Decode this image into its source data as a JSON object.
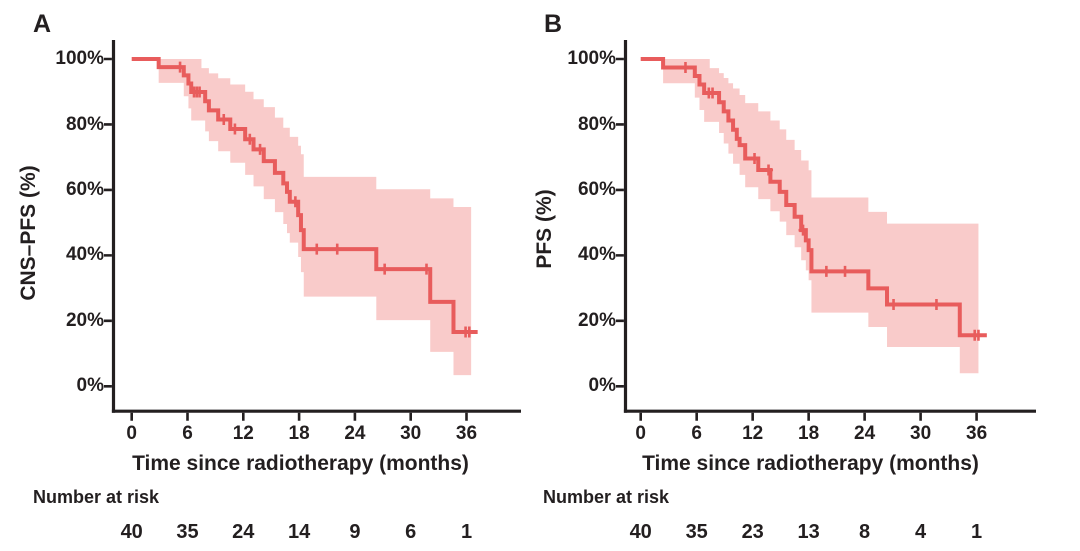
{
  "colors": {
    "curve": "#e85c5c",
    "band": "#f9cbca",
    "axis": "#231f20",
    "text": "#231f20",
    "background": "#ffffff"
  },
  "x_axis": {
    "label": "Time since radiotherapy (months)",
    "ticks": [
      "0",
      "6",
      "12",
      "18",
      "24",
      "30",
      "36"
    ]
  },
  "y_axis": {
    "ticks": [
      "100%",
      "80%",
      "60%",
      "40%",
      "20%",
      "0%"
    ]
  },
  "risk_table_title": "Number at risk",
  "chart_data": [
    {
      "type": "line",
      "panel_label": "A",
      "ylabel": "CNS–PFS (%)",
      "xlabel": "Time since radiotherapy (months)",
      "xlim": [
        0,
        40
      ],
      "ylim": [
        0,
        100
      ],
      "x_tick_values": [
        0,
        6,
        12,
        18,
        24,
        30,
        36
      ],
      "y_tick_values": [
        100,
        80,
        60,
        40,
        20,
        0
      ],
      "number_at_risk": [
        40,
        35,
        24,
        14,
        9,
        6,
        1
      ],
      "km_steps": [
        [
          0,
          100
        ],
        [
          2.9,
          97.5
        ],
        [
          5.6,
          95.0
        ],
        [
          6.1,
          92.5
        ],
        [
          6.4,
          89.9
        ],
        [
          7.9,
          87.1
        ],
        [
          8.3,
          84.3
        ],
        [
          9.3,
          81.5
        ],
        [
          10.6,
          78.6
        ],
        [
          12.2,
          75.5
        ],
        [
          13.1,
          72.4
        ],
        [
          14.2,
          68.8
        ],
        [
          15.4,
          65.2
        ],
        [
          16.3,
          62.0
        ],
        [
          16.7,
          59.4
        ],
        [
          17.0,
          56.4
        ],
        [
          17.9,
          52.3
        ],
        [
          18.2,
          47.7
        ],
        [
          18.5,
          41.9
        ],
        [
          26.3,
          35.8
        ],
        [
          32.1,
          25.8
        ],
        [
          34.6,
          16.6
        ]
      ],
      "end_t": 37.2,
      "censor_marks": [
        [
          5.2,
          97.5
        ],
        [
          6.7,
          89.9
        ],
        [
          7.0,
          89.9
        ],
        [
          7.3,
          89.9
        ],
        [
          9.9,
          81.5
        ],
        [
          11.1,
          78.6
        ],
        [
          12.7,
          75.5
        ],
        [
          13.8,
          72.4
        ],
        [
          17.6,
          56.4
        ],
        [
          19.9,
          41.9
        ],
        [
          22.1,
          41.9
        ],
        [
          27.2,
          35.8
        ],
        [
          31.7,
          35.8
        ],
        [
          35.9,
          16.6
        ],
        [
          36.3,
          16.6
        ]
      ],
      "ci_upper": [
        [
          0,
          100
        ],
        [
          7.5,
          97.2
        ],
        [
          8.3,
          95.6
        ],
        [
          9.3,
          94.1
        ],
        [
          10.6,
          92.2
        ],
        [
          12.2,
          90.0
        ],
        [
          13.1,
          87.7
        ],
        [
          14.2,
          85.3
        ],
        [
          15.4,
          82.1
        ],
        [
          16.3,
          79.0
        ],
        [
          17.0,
          76.2
        ],
        [
          17.9,
          73.5
        ],
        [
          18.2,
          70.9
        ],
        [
          18.5,
          64.0
        ],
        [
          26.3,
          60.2
        ],
        [
          32.1,
          57.4
        ],
        [
          34.6,
          54.8
        ]
      ],
      "ci_lower": [
        [
          0,
          100
        ],
        [
          2.9,
          92.7
        ],
        [
          5.6,
          88.6
        ],
        [
          6.1,
          84.9
        ],
        [
          6.4,
          81.2
        ],
        [
          7.9,
          77.9
        ],
        [
          8.3,
          74.9
        ],
        [
          9.3,
          71.8
        ],
        [
          10.6,
          68.3
        ],
        [
          12.2,
          64.6
        ],
        [
          13.1,
          61.1
        ],
        [
          14.2,
          57.2
        ],
        [
          15.4,
          53.2
        ],
        [
          16.3,
          49.6
        ],
        [
          16.7,
          46.8
        ],
        [
          17.0,
          43.9
        ],
        [
          17.9,
          39.5
        ],
        [
          18.2,
          34.9
        ],
        [
          18.5,
          27.4
        ],
        [
          26.3,
          20.2
        ],
        [
          32.1,
          10.5
        ],
        [
          34.6,
          3.4
        ]
      ],
      "ci_end_t": 36.5
    },
    {
      "type": "line",
      "panel_label": "B",
      "ylabel": "PFS (%)",
      "xlabel": "Time since radiotherapy (months)",
      "xlim": [
        0,
        40
      ],
      "ylim": [
        0,
        100
      ],
      "x_tick_values": [
        0,
        6,
        12,
        18,
        24,
        30,
        36
      ],
      "y_tick_values": [
        100,
        80,
        60,
        40,
        20,
        0
      ],
      "number_at_risk": [
        40,
        35,
        23,
        13,
        8,
        4,
        1
      ],
      "km_steps": [
        [
          0,
          100
        ],
        [
          2.4,
          97.4
        ],
        [
          5.8,
          94.8
        ],
        [
          6.3,
          92.2
        ],
        [
          6.8,
          89.6
        ],
        [
          8.4,
          86.8
        ],
        [
          8.9,
          84.0
        ],
        [
          9.4,
          81.2
        ],
        [
          9.9,
          78.4
        ],
        [
          10.3,
          75.6
        ],
        [
          10.6,
          73.7
        ],
        [
          11.2,
          69.6
        ],
        [
          12.6,
          66.1
        ],
        [
          13.9,
          62.5
        ],
        [
          14.9,
          59.4
        ],
        [
          15.6,
          55.4
        ],
        [
          16.5,
          51.8
        ],
        [
          17.2,
          47.7
        ],
        [
          17.7,
          44.6
        ],
        [
          18.0,
          41.6
        ],
        [
          18.3,
          35.1
        ],
        [
          24.4,
          29.9
        ],
        [
          26.4,
          25.0
        ],
        [
          34.2,
          15.6
        ]
      ],
      "end_t": 37.1,
      "censor_marks": [
        [
          4.8,
          97.4
        ],
        [
          7.3,
          89.6
        ],
        [
          7.7,
          89.6
        ],
        [
          12.2,
          69.6
        ],
        [
          13.7,
          66.1
        ],
        [
          17.4,
          47.7
        ],
        [
          19.9,
          35.1
        ],
        [
          21.9,
          35.1
        ],
        [
          27.1,
          25.0
        ],
        [
          31.7,
          25.0
        ],
        [
          35.8,
          15.6
        ],
        [
          36.2,
          15.6
        ]
      ],
      "ci_upper": [
        [
          0,
          100
        ],
        [
          7.4,
          97.2
        ],
        [
          8.4,
          95.7
        ],
        [
          8.9,
          94.2
        ],
        [
          9.4,
          92.6
        ],
        [
          9.9,
          91.0
        ],
        [
          10.6,
          89.0
        ],
        [
          11.2,
          86.5
        ],
        [
          12.6,
          84.0
        ],
        [
          13.9,
          81.2
        ],
        [
          14.9,
          78.5
        ],
        [
          15.6,
          75.3
        ],
        [
          16.5,
          72.2
        ],
        [
          17.2,
          69.0
        ],
        [
          18.0,
          66.0
        ],
        [
          18.3,
          57.7
        ],
        [
          24.4,
          53.3
        ],
        [
          26.4,
          49.7
        ]
      ],
      "ci_lower": [
        [
          0,
          100
        ],
        [
          2.4,
          92.6
        ],
        [
          5.8,
          88.2
        ],
        [
          6.3,
          84.4
        ],
        [
          6.8,
          80.8
        ],
        [
          8.4,
          77.4
        ],
        [
          8.9,
          74.2
        ],
        [
          9.4,
          71.1
        ],
        [
          9.9,
          68.0
        ],
        [
          10.6,
          64.6
        ],
        [
          11.2,
          60.8
        ],
        [
          12.6,
          57.2
        ],
        [
          13.9,
          53.5
        ],
        [
          14.9,
          50.3
        ],
        [
          15.6,
          46.2
        ],
        [
          16.5,
          42.5
        ],
        [
          17.2,
          38.5
        ],
        [
          17.7,
          35.4
        ],
        [
          18.0,
          32.4
        ],
        [
          18.3,
          22.5
        ],
        [
          24.4,
          18.1
        ],
        [
          26.4,
          12.0
        ],
        [
          34.2,
          4.0
        ]
      ],
      "ci_end_t": 36.2
    }
  ]
}
